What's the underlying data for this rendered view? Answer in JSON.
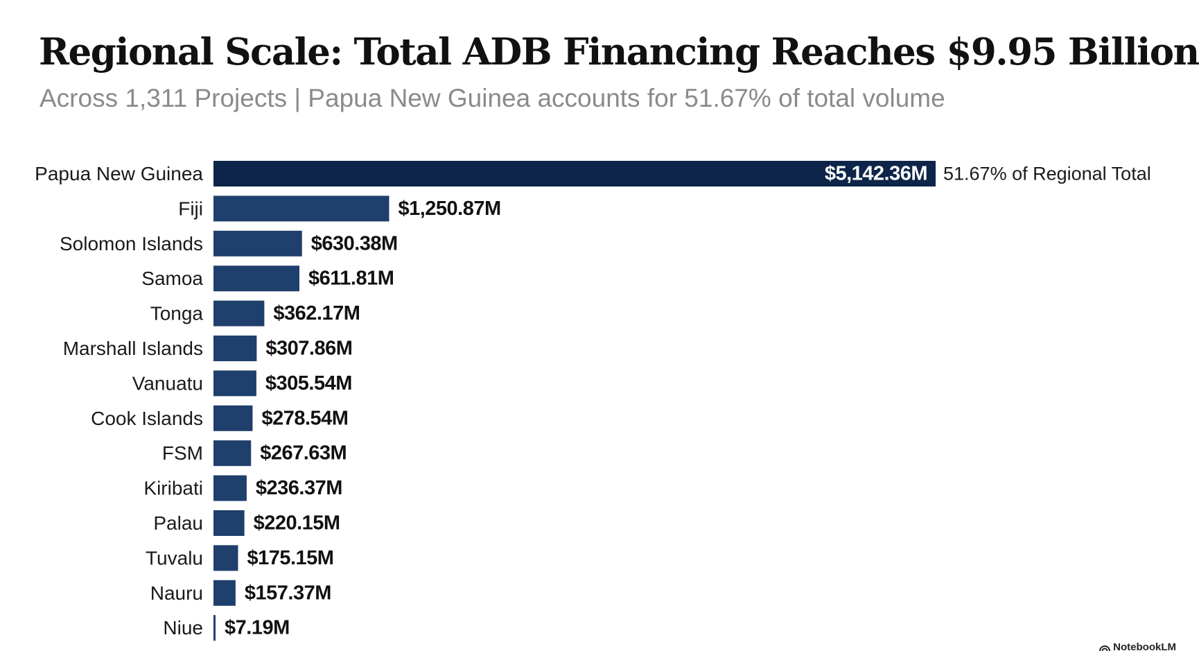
{
  "chart_data": {
    "type": "bar",
    "orientation": "horizontal",
    "title": "Regional Scale: Total ADB Financing Reaches $9.95 Billion",
    "subtitle": "Across 1,311 Projects | Papua New Guinea accounts for 51.67% of total volume",
    "categories": [
      "Papua New Guinea",
      "Fiji",
      "Solomon Islands",
      "Samoa",
      "Tonga",
      "Marshall Islands",
      "Vanuatu",
      "Cook Islands",
      "FSM",
      "Kiribati",
      "Palau",
      "Tuvalu",
      "Nauru",
      "Niue"
    ],
    "values": [
      5142.36,
      1250.87,
      630.38,
      611.81,
      362.17,
      307.86,
      305.54,
      278.54,
      267.63,
      236.37,
      220.15,
      175.15,
      157.37,
      7.19
    ],
    "value_labels": [
      "$5,142.36M",
      "$1,250.87M",
      "$630.38M",
      "$611.81M",
      "$362.17M",
      "$307.86M",
      "$305.54M",
      "$278.54M",
      "$267.63M",
      "$236.37M",
      "$220.15M",
      "$175.15M",
      "$157.37M",
      "$7.19M"
    ],
    "annotation": "51.67% of Regional Total",
    "unit": "USD millions",
    "xlim": [
      0,
      5142.36
    ],
    "grid": false,
    "legend": "none",
    "colors": {
      "top_bar": "#0d2548",
      "bar": "#1f3f6c"
    }
  },
  "branding": {
    "label": "NotebookLM",
    "icon": "notebooklm-logo-icon"
  }
}
